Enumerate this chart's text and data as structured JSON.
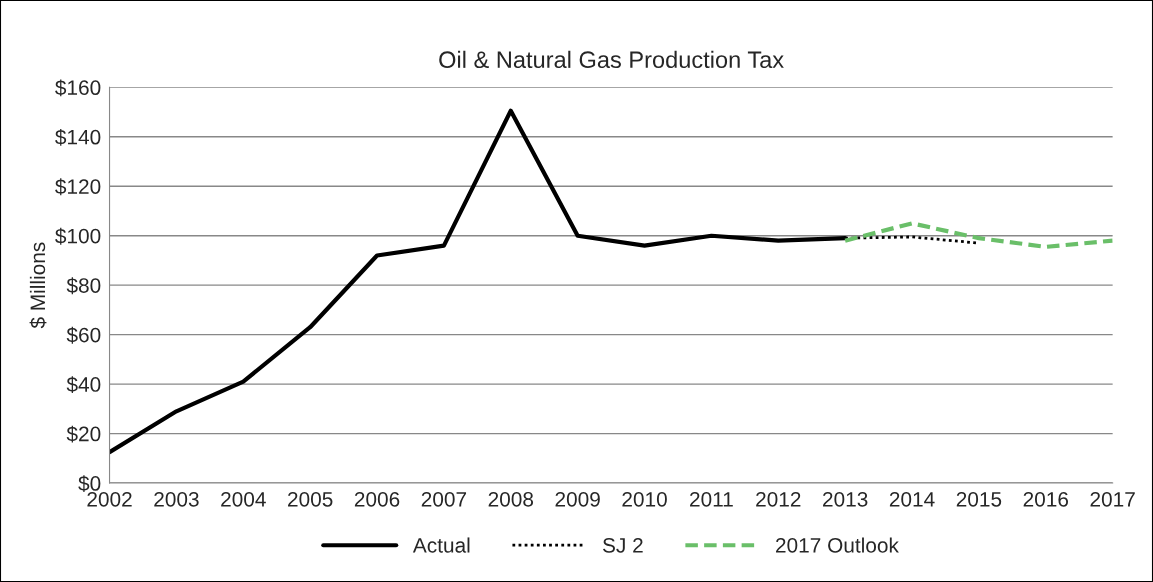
{
  "chart_data": {
    "type": "line",
    "title": "Oil & Natural Gas Production Tax",
    "ylabel": "$ Millions",
    "categories": [
      "2002",
      "2003",
      "2004",
      "2005",
      "2006",
      "2007",
      "2008",
      "2009",
      "2010",
      "2011",
      "2012",
      "2013",
      "2014",
      "2015",
      "2016",
      "2017"
    ],
    "series": [
      {
        "name": "Actual",
        "color": "#000000",
        "line_style": "solid",
        "values": [
          12.5,
          29,
          41,
          63,
          92,
          96,
          150.5,
          100,
          96,
          100,
          98,
          99,
          null,
          null,
          null,
          null
        ]
      },
      {
        "name": "SJ 2",
        "color": "#000000",
        "line_style": "dotted",
        "values": [
          null,
          null,
          null,
          null,
          null,
          null,
          null,
          null,
          null,
          null,
          null,
          99,
          99.5,
          97,
          null,
          null
        ]
      },
      {
        "name": "2017 Outlook",
        "color": "#6abf69",
        "line_style": "dashed",
        "values": [
          null,
          null,
          null,
          null,
          null,
          null,
          null,
          null,
          null,
          null,
          null,
          98,
          105,
          99,
          95.5,
          98
        ]
      }
    ],
    "ylim": [
      0,
      160
    ],
    "yticks": [
      {
        "value": 0,
        "label": "$0"
      },
      {
        "value": 20,
        "label": "$20"
      },
      {
        "value": 40,
        "label": "$40"
      },
      {
        "value": 60,
        "label": "$60"
      },
      {
        "value": 80,
        "label": "$80"
      },
      {
        "value": 100,
        "label": "$100"
      },
      {
        "value": 120,
        "label": "$120"
      },
      {
        "value": 140,
        "label": "$140"
      },
      {
        "value": 160,
        "label": "$160"
      }
    ],
    "grid": "y",
    "legend": "bottom",
    "marker": "none"
  }
}
